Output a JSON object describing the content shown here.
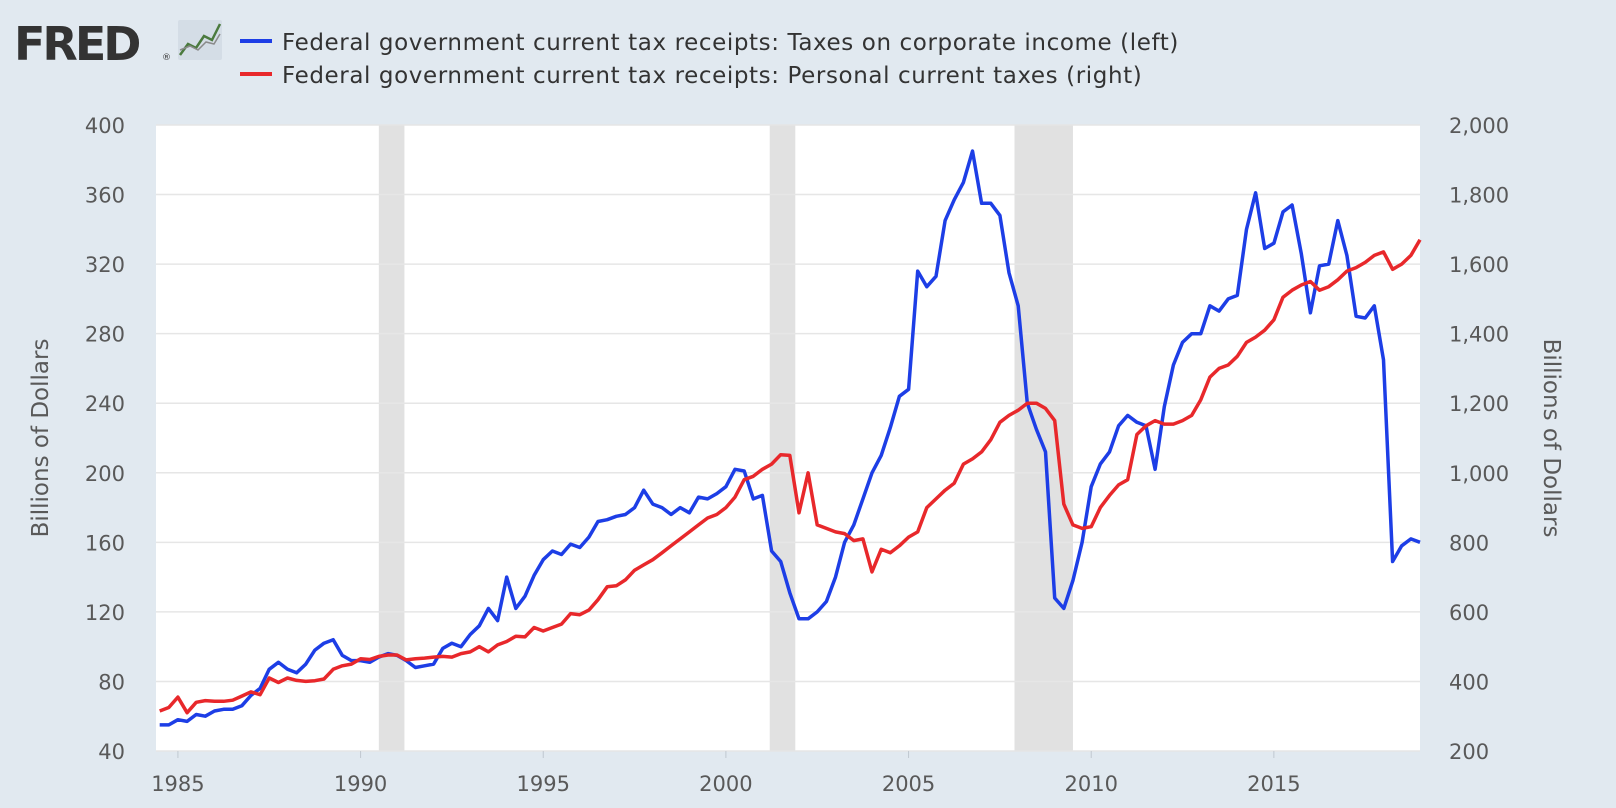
{
  "header": {
    "logo_text": "FRED",
    "logo_mark": "®",
    "logo_icon": "fred-sparkline-icon"
  },
  "colors": {
    "background": "#e1e9f0",
    "plot_bg": "#ffffff",
    "grid": "#e6e6e6",
    "recession": "#e1e1e1",
    "series_left": "#1d3ee6",
    "series_right": "#e8282b",
    "text": "#595959",
    "legend_text": "#333333",
    "logo": "#333333"
  },
  "chart_data": {
    "type": "line",
    "title": "",
    "xlabel": "",
    "ylabel_left": "Billions of Dollars",
    "ylabel_right": "Billions of Dollars",
    "xlim": [
      1984.4,
      2019.0
    ],
    "ylim_left": [
      40,
      400
    ],
    "ylim_right": [
      200,
      2000
    ],
    "x_ticks": [
      1985,
      1990,
      1995,
      2000,
      2005,
      2010,
      2015
    ],
    "x_tick_labels": [
      "1985",
      "1990",
      "1995",
      "2000",
      "2005",
      "2010",
      "2015"
    ],
    "y_left_ticks": [
      40,
      80,
      120,
      160,
      200,
      240,
      280,
      320,
      360,
      400
    ],
    "y_left_tick_labels": [
      "40",
      "80",
      "120",
      "160",
      "200",
      "240",
      "280",
      "320",
      "360",
      "400"
    ],
    "y_right_ticks": [
      200,
      400,
      600,
      800,
      1000,
      1200,
      1400,
      1600,
      1800,
      2000
    ],
    "y_right_tick_labels": [
      "200",
      "400",
      "600",
      "800",
      "1,000",
      "1,200",
      "1,400",
      "1,600",
      "1,800",
      "2,000"
    ],
    "grid": true,
    "legend_position": "top",
    "recessions": [
      [
        1990.5,
        1991.2
      ],
      [
        2001.2,
        2001.9
      ],
      [
        2007.9,
        2009.5
      ]
    ],
    "series": [
      {
        "name": "Federal government current tax receipts: Taxes on corporate income (left)",
        "axis": "left",
        "points": [
          [
            1984.5,
            55
          ],
          [
            1984.75,
            55
          ],
          [
            1985.0,
            58
          ],
          [
            1985.25,
            57
          ],
          [
            1985.5,
            61
          ],
          [
            1985.75,
            60
          ],
          [
            1986.0,
            63
          ],
          [
            1986.25,
            64
          ],
          [
            1986.5,
            64
          ],
          [
            1986.75,
            66
          ],
          [
            1987.0,
            72
          ],
          [
            1987.25,
            76
          ],
          [
            1987.5,
            87
          ],
          [
            1987.75,
            91
          ],
          [
            1988.0,
            87
          ],
          [
            1988.25,
            85
          ],
          [
            1988.5,
            90
          ],
          [
            1988.75,
            98
          ],
          [
            1989.0,
            102
          ],
          [
            1989.25,
            104
          ],
          [
            1989.5,
            95
          ],
          [
            1989.75,
            92
          ],
          [
            1990.0,
            92
          ],
          [
            1990.25,
            91
          ],
          [
            1990.5,
            94
          ],
          [
            1990.75,
            96
          ],
          [
            1991.0,
            95
          ],
          [
            1991.25,
            92
          ],
          [
            1991.5,
            88
          ],
          [
            1991.75,
            89
          ],
          [
            1992.0,
            90
          ],
          [
            1992.25,
            99
          ],
          [
            1992.5,
            102
          ],
          [
            1992.75,
            100
          ],
          [
            1993.0,
            107
          ],
          [
            1993.25,
            112
          ],
          [
            1993.5,
            122
          ],
          [
            1993.75,
            115
          ],
          [
            1994.0,
            140
          ],
          [
            1994.25,
            122
          ],
          [
            1994.5,
            129
          ],
          [
            1994.75,
            141
          ],
          [
            1995.0,
            150
          ],
          [
            1995.25,
            155
          ],
          [
            1995.5,
            153
          ],
          [
            1995.75,
            159
          ],
          [
            1996.0,
            157
          ],
          [
            1996.25,
            163
          ],
          [
            1996.5,
            172
          ],
          [
            1996.75,
            173
          ],
          [
            1997.0,
            175
          ],
          [
            1997.25,
            176
          ],
          [
            1997.5,
            180
          ],
          [
            1997.75,
            190
          ],
          [
            1998.0,
            182
          ],
          [
            1998.25,
            180
          ],
          [
            1998.5,
            176
          ],
          [
            1998.75,
            180
          ],
          [
            1999.0,
            177
          ],
          [
            1999.25,
            186
          ],
          [
            1999.5,
            185
          ],
          [
            1999.75,
            188
          ],
          [
            2000.0,
            192
          ],
          [
            2000.25,
            202
          ],
          [
            2000.5,
            201
          ],
          [
            2000.75,
            185
          ],
          [
            2001.0,
            187
          ],
          [
            2001.25,
            155
          ],
          [
            2001.5,
            149
          ],
          [
            2001.75,
            131
          ],
          [
            2002.0,
            116
          ],
          [
            2002.25,
            116
          ],
          [
            2002.5,
            120
          ],
          [
            2002.75,
            126
          ],
          [
            2003.0,
            140
          ],
          [
            2003.25,
            160
          ],
          [
            2003.5,
            170
          ],
          [
            2003.75,
            185
          ],
          [
            2004.0,
            200
          ],
          [
            2004.25,
            210
          ],
          [
            2004.5,
            226
          ],
          [
            2004.75,
            244
          ],
          [
            2005.0,
            248
          ],
          [
            2005.25,
            316
          ],
          [
            2005.5,
            307
          ],
          [
            2005.75,
            313
          ],
          [
            2006.0,
            345
          ],
          [
            2006.25,
            357
          ],
          [
            2006.5,
            367
          ],
          [
            2006.75,
            385
          ],
          [
            2007.0,
            355
          ],
          [
            2007.25,
            355
          ],
          [
            2007.5,
            348
          ],
          [
            2007.75,
            315
          ],
          [
            2008.0,
            296
          ],
          [
            2008.25,
            240
          ],
          [
            2008.5,
            225
          ],
          [
            2008.75,
            212
          ],
          [
            2009.0,
            128
          ],
          [
            2009.25,
            122
          ],
          [
            2009.5,
            138
          ],
          [
            2009.75,
            160
          ],
          [
            2010.0,
            192
          ],
          [
            2010.25,
            205
          ],
          [
            2010.5,
            212
          ],
          [
            2010.75,
            227
          ],
          [
            2011.0,
            233
          ],
          [
            2011.25,
            229
          ],
          [
            2011.5,
            227
          ],
          [
            2011.75,
            202
          ],
          [
            2012.0,
            238
          ],
          [
            2012.25,
            262
          ],
          [
            2012.5,
            275
          ],
          [
            2012.75,
            280
          ],
          [
            2013.0,
            280
          ],
          [
            2013.25,
            296
          ],
          [
            2013.5,
            293
          ],
          [
            2013.75,
            300
          ],
          [
            2014.0,
            302
          ],
          [
            2014.25,
            340
          ],
          [
            2014.5,
            361
          ],
          [
            2014.75,
            329
          ],
          [
            2015.0,
            332
          ],
          [
            2015.25,
            350
          ],
          [
            2015.5,
            354
          ],
          [
            2015.75,
            326
          ],
          [
            2016.0,
            292
          ],
          [
            2016.25,
            319
          ],
          [
            2016.5,
            320
          ],
          [
            2016.75,
            345
          ],
          [
            2017.0,
            325
          ],
          [
            2017.25,
            290
          ],
          [
            2017.5,
            289
          ],
          [
            2017.75,
            296
          ],
          [
            2018.0,
            265
          ],
          [
            2018.25,
            149
          ],
          [
            2018.5,
            158
          ],
          [
            2018.75,
            162
          ],
          [
            2019.0,
            160
          ]
        ]
      },
      {
        "name": "Federal government current tax receipts: Personal current taxes (right)",
        "axis": "right",
        "points": [
          [
            1984.5,
            315
          ],
          [
            1984.75,
            325
          ],
          [
            1985.0,
            355
          ],
          [
            1985.25,
            310
          ],
          [
            1985.5,
            340
          ],
          [
            1985.75,
            345
          ],
          [
            1986.0,
            343
          ],
          [
            1986.25,
            343
          ],
          [
            1986.5,
            346
          ],
          [
            1986.75,
            358
          ],
          [
            1987.0,
            370
          ],
          [
            1987.25,
            362
          ],
          [
            1987.5,
            410
          ],
          [
            1987.75,
            397
          ],
          [
            1988.0,
            410
          ],
          [
            1988.25,
            403
          ],
          [
            1988.5,
            400
          ],
          [
            1988.75,
            402
          ],
          [
            1989.0,
            407
          ],
          [
            1989.25,
            435
          ],
          [
            1989.5,
            445
          ],
          [
            1989.75,
            450
          ],
          [
            1990.0,
            465
          ],
          [
            1990.25,
            463
          ],
          [
            1990.5,
            472
          ],
          [
            1990.75,
            476
          ],
          [
            1991.0,
            476
          ],
          [
            1991.25,
            462
          ],
          [
            1991.5,
            465
          ],
          [
            1991.75,
            467
          ],
          [
            1992.0,
            470
          ],
          [
            1992.25,
            472
          ],
          [
            1992.5,
            470
          ],
          [
            1992.75,
            480
          ],
          [
            1993.0,
            485
          ],
          [
            1993.25,
            500
          ],
          [
            1993.5,
            485
          ],
          [
            1993.75,
            505
          ],
          [
            1994.0,
            515
          ],
          [
            1994.25,
            530
          ],
          [
            1994.5,
            528
          ],
          [
            1994.75,
            555
          ],
          [
            1995.0,
            545
          ],
          [
            1995.25,
            555
          ],
          [
            1995.5,
            565
          ],
          [
            1995.75,
            595
          ],
          [
            1996.0,
            592
          ],
          [
            1996.25,
            605
          ],
          [
            1996.5,
            635
          ],
          [
            1996.75,
            672
          ],
          [
            1997.0,
            675
          ],
          [
            1997.25,
            692
          ],
          [
            1997.5,
            720
          ],
          [
            1997.75,
            735
          ],
          [
            1998.0,
            750
          ],
          [
            1998.25,
            770
          ],
          [
            1998.5,
            790
          ],
          [
            1998.75,
            810
          ],
          [
            1999.0,
            830
          ],
          [
            1999.25,
            850
          ],
          [
            1999.5,
            870
          ],
          [
            1999.75,
            880
          ],
          [
            2000.0,
            900
          ],
          [
            2000.25,
            930
          ],
          [
            2000.5,
            980
          ],
          [
            2000.75,
            990
          ],
          [
            2001.0,
            1010
          ],
          [
            2001.25,
            1025
          ],
          [
            2001.5,
            1052
          ],
          [
            2001.75,
            1050
          ],
          [
            2002.0,
            885
          ],
          [
            2002.25,
            1000
          ],
          [
            2002.5,
            850
          ],
          [
            2002.75,
            840
          ],
          [
            2003.0,
            830
          ],
          [
            2003.25,
            825
          ],
          [
            2003.5,
            805
          ],
          [
            2003.75,
            810
          ],
          [
            2004.0,
            715
          ],
          [
            2004.25,
            780
          ],
          [
            2004.5,
            770
          ],
          [
            2004.75,
            790
          ],
          [
            2005.0,
            815
          ],
          [
            2005.25,
            830
          ],
          [
            2005.5,
            900
          ],
          [
            2005.75,
            925
          ],
          [
            2006.0,
            950
          ],
          [
            2006.25,
            970
          ],
          [
            2006.5,
            1025
          ],
          [
            2006.75,
            1040
          ],
          [
            2007.0,
            1060
          ],
          [
            2007.25,
            1095
          ],
          [
            2007.5,
            1145
          ],
          [
            2007.75,
            1165
          ],
          [
            2008.0,
            1180
          ],
          [
            2008.25,
            1200
          ],
          [
            2008.5,
            1200
          ],
          [
            2008.75,
            1185
          ],
          [
            2009.0,
            1150
          ],
          [
            2009.25,
            910
          ],
          [
            2009.5,
            850
          ],
          [
            2009.75,
            840
          ],
          [
            2010.0,
            845
          ],
          [
            2010.25,
            900
          ],
          [
            2010.5,
            935
          ],
          [
            2010.75,
            965
          ],
          [
            2011.0,
            980
          ],
          [
            2011.25,
            1110
          ],
          [
            2011.5,
            1135
          ],
          [
            2011.75,
            1150
          ],
          [
            2012.0,
            1140
          ],
          [
            2012.25,
            1140
          ],
          [
            2012.5,
            1150
          ],
          [
            2012.75,
            1165
          ],
          [
            2013.0,
            1210
          ],
          [
            2013.25,
            1275
          ],
          [
            2013.5,
            1300
          ],
          [
            2013.75,
            1310
          ],
          [
            2014.0,
            1335
          ],
          [
            2014.25,
            1375
          ],
          [
            2014.5,
            1390
          ],
          [
            2014.75,
            1410
          ],
          [
            2015.0,
            1440
          ],
          [
            2015.25,
            1505
          ],
          [
            2015.5,
            1525
          ],
          [
            2015.75,
            1540
          ],
          [
            2016.0,
            1550
          ],
          [
            2016.25,
            1525
          ],
          [
            2016.5,
            1535
          ],
          [
            2016.75,
            1555
          ],
          [
            2017.0,
            1580
          ],
          [
            2017.25,
            1590
          ],
          [
            2017.5,
            1605
          ],
          [
            2017.75,
            1625
          ],
          [
            2018.0,
            1635
          ],
          [
            2018.25,
            1585
          ],
          [
            2018.5,
            1600
          ],
          [
            2018.75,
            1625
          ],
          [
            2019.0,
            1670
          ]
        ]
      }
    ]
  }
}
